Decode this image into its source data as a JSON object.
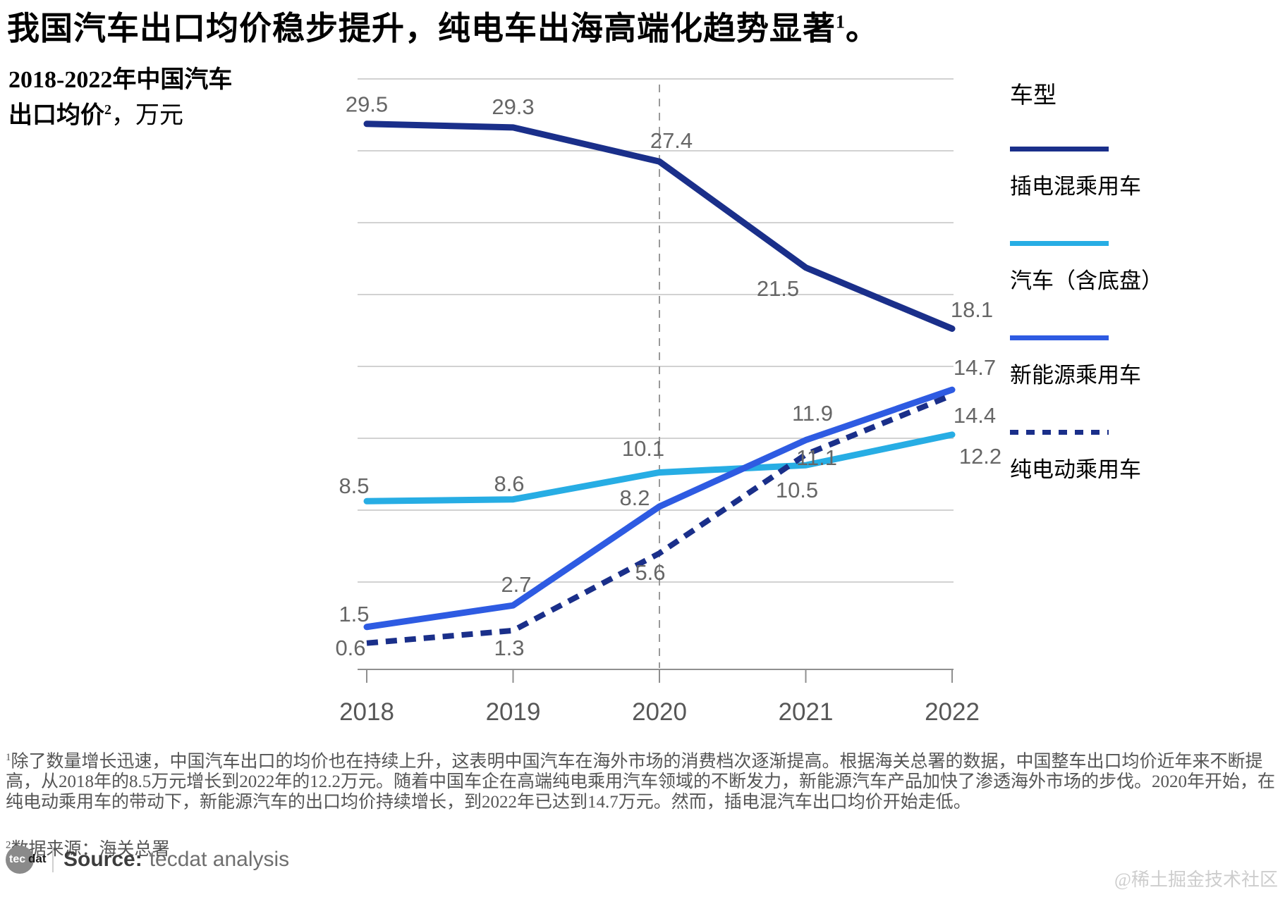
{
  "page": {
    "title": {
      "main": "我国汽车出口均价稳步提升，纯电车出海高端化趋势显著",
      "superscript": "1",
      "period": "。"
    },
    "subtitle": {
      "line1": "2018-2022年中国汽车",
      "line2_main": "出口均价",
      "line2_superscript": "2",
      "line2_unit": "，万元"
    },
    "watermark": "@稀土掘金技术社区"
  },
  "legend": {
    "header": "车型"
  },
  "chart_data": {
    "type": "line",
    "title": "2018-2022年中国汽车出口均价，万元",
    "categories": [
      "2018",
      "2019",
      "2020",
      "2021",
      "2022"
    ],
    "series": [
      {
        "name": "插电混乘用车",
        "values": [
          29.5,
          29.3,
          27.4,
          21.5,
          18.1
        ],
        "color": "#1A2F8A",
        "style": "solid"
      },
      {
        "name": "汽车（含底盘）",
        "values": [
          8.5,
          8.6,
          10.1,
          10.5,
          12.2
        ],
        "color": "#27ADE4",
        "style": "solid"
      },
      {
        "name": "新能源乘用车",
        "values": [
          1.5,
          2.7,
          8.2,
          11.9,
          14.7
        ],
        "color": "#2E5BE2",
        "style": "solid"
      },
      {
        "name": "纯电动乘用车",
        "values": [
          0.6,
          1.3,
          5.6,
          11.1,
          14.4
        ],
        "color": "#1A2F8A",
        "style": "dashed"
      }
    ],
    "highlight_x": "2020",
    "grid": true,
    "legend_position": "right",
    "ylim": [
      0,
      32
    ],
    "colors": {
      "grid": "#C4C4C4",
      "axis": "#8F8F8F",
      "label": "#666666",
      "tick_text": "#575757"
    }
  },
  "footnotes": {
    "note1_sup": "1",
    "note1": "除了数量增长迅速，中国汽车出口的均价也在持续上升，这表明中国汽车在海外市场的消费档次逐渐提高。根据海关总署的数据，中国整车出口均价近年来不断提高，从2018年的8.5万元增长到2022年的12.2万元。随着中国车企在高端纯电乘用汽车领域的不断发力，新能源汽车产品加快了渗透海外市场的步伐。2020年开始，在纯电动乘用车的带动下，新能源汽车的出口均价持续增长，到2022年已达到14.7万元。然而，插电混汽车出口均价开始走低。",
    "note2_sup": "2",
    "note2": "数据来源：海关总署"
  },
  "source": {
    "logo_tec": "tec",
    "logo_dat": "dat",
    "label": "Source:",
    "text": "tecdat analysis"
  }
}
